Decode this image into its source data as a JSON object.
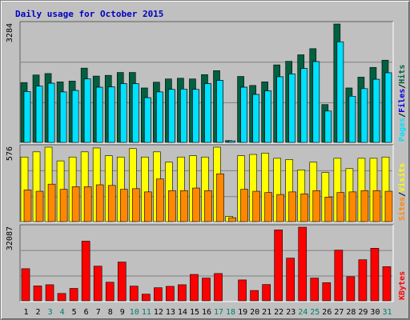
{
  "title": "Daily usage for October 2015",
  "colors": {
    "hits": "#006040",
    "files": "#0000e0",
    "pages": "#00e0ff",
    "visits": "#ffff00",
    "sites": "#ff8800",
    "kbytes": "#ff0000",
    "title": "#0000c0",
    "weekend_day": "#00806a",
    "weekday_day": "#000000",
    "panel_bg": "#c0c0c0"
  },
  "legend": {
    "hits": "Hits",
    "files": "Files",
    "pages": "Pages",
    "visits": "Visits",
    "sites": "Sites",
    "kbytes": "KBytes",
    "sep": "/"
  },
  "chart_data": {
    "type": "bar",
    "title": "Daily usage for October 2015",
    "categories": [
      "1",
      "2",
      "3",
      "4",
      "5",
      "6",
      "7",
      "8",
      "9",
      "10",
      "11",
      "12",
      "13",
      "14",
      "15",
      "16",
      "17",
      "18",
      "19",
      "20",
      "21",
      "22",
      "23",
      "24",
      "25",
      "26",
      "27",
      "28",
      "29",
      "30",
      "31"
    ],
    "weekend_days": [
      "3",
      "4",
      "10",
      "11",
      "17",
      "18",
      "24",
      "25",
      "31"
    ],
    "panels": [
      {
        "name": "hits-files-pages",
        "max_label": "3284",
        "ylim": [
          0,
          3284
        ],
        "series": [
          {
            "name": "Hits",
            "key": "hits",
            "values": [
              1660,
              1870,
              1910,
              1680,
              1700,
              2060,
              1840,
              1860,
              1940,
              1940,
              1510,
              1670,
              1760,
              1780,
              1760,
              1880,
              1990,
              50,
              1830,
              1580,
              1680,
              2150,
              2250,
              2430,
              2600,
              1050,
              3284,
              1510,
              1810,
              2080,
              2280
            ]
          },
          {
            "name": "Files",
            "key": "files",
            "values": [
              1410,
              1560,
              1640,
              1400,
              1440,
              1760,
              1530,
              1540,
              1630,
              1630,
              1240,
              1400,
              1470,
              1480,
              1470,
              1630,
              1720,
              40,
              1530,
              1330,
              1430,
              1820,
              1900,
              2050,
              2240,
              870,
              2790,
              1280,
              1490,
              1750,
              1930
            ]
          },
          {
            "name": "Pages",
            "key": "pages",
            "values": [
              1410,
              1560,
              1640,
              1400,
              1440,
              1760,
              1530,
              1540,
              1630,
              1630,
              1240,
              1400,
              1470,
              1480,
              1470,
              1630,
              1720,
              40,
              1530,
              1330,
              1430,
              1820,
              1900,
              2050,
              2240,
              870,
              2790,
              1280,
              1490,
              1750,
              1930
            ]
          }
        ]
      },
      {
        "name": "visits-sites",
        "max_label": "576",
        "ylim": [
          0,
          576
        ],
        "series": [
          {
            "name": "Visits",
            "key": "visits",
            "values": [
              500,
              540,
              576,
              470,
              500,
              540,
              570,
              510,
              500,
              565,
              500,
              540,
              460,
              500,
              510,
              500,
              576,
              40,
              510,
              520,
              530,
              490,
              480,
              400,
              460,
              380,
              490,
              410,
              490,
              490,
              500
            ]
          },
          {
            "name": "Sites",
            "key": "sites",
            "values": [
              245,
              235,
              290,
              250,
              270,
              270,
              285,
              280,
              250,
              255,
              230,
              330,
              240,
              240,
              260,
              240,
              370,
              30,
              250,
              235,
              225,
              210,
              230,
              215,
              240,
              190,
              225,
              230,
              240,
              240,
              235
            ]
          }
        ]
      },
      {
        "name": "kbytes",
        "max_label": "32087",
        "ylim": [
          0,
          32087
        ],
        "series": [
          {
            "name": "KBytes",
            "key": "kbytes",
            "values": [
              14000,
              6500,
              7000,
              3200,
              5400,
              26000,
              15100,
              8100,
              16900,
              6400,
              2900,
              5700,
              6300,
              7000,
              11500,
              9900,
              11900,
              0,
              9100,
              4500,
              7100,
              30900,
              18600,
              32087,
              9900,
              7900,
              22100,
              10500,
              17900,
              22900,
              14900
            ]
          }
        ]
      }
    ]
  }
}
